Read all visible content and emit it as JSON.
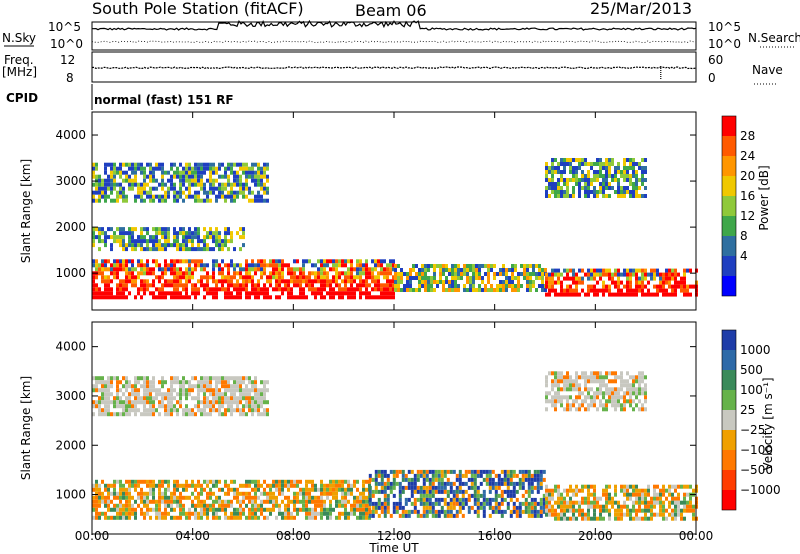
{
  "header": {
    "station": "South Pole Station (fitACF)",
    "beam": "Beam 06",
    "date": "25/Mar/2013"
  },
  "status_panels": {
    "nsky_label": "N.Sky",
    "nsearch_label": "N.Search",
    "freq_label_top": "Freq.",
    "freq_label_unit": "[MHz]",
    "cpid_label": "CPID",
    "nave_label": "Nave",
    "nsky_ticks": [
      "10^5",
      "10^0"
    ],
    "nsearch_ticks": [
      "10^5",
      "10^0"
    ],
    "freq_ticks": [
      "12",
      "8"
    ],
    "nave_ticks": [
      "60",
      "0"
    ],
    "cpid_text": "normal (fast) 151 RF"
  },
  "chart_data": [
    {
      "type": "heatmap",
      "name": "power",
      "ylabel": "Slant Range [km]",
      "xlabel": "",
      "ylim": [
        200,
        4500
      ],
      "y_ticks": [
        "1000",
        "2000",
        "3000",
        "4000"
      ],
      "colorbar": {
        "label": "Power [dB]",
        "ticks": [
          "28",
          "24",
          "20",
          "16",
          "12",
          "8",
          "4"
        ],
        "colors": [
          "#ff0000",
          "#ff5a00",
          "#ff9600",
          "#f0c800",
          "#8fc93a",
          "#3fa74a",
          "#2f6fa0",
          "#1f3fc0",
          "#0000ff"
        ]
      },
      "regions": [
        {
          "t": [
            0.0,
            12.0
          ],
          "range": [
            500,
            1300
          ],
          "level": "high"
        },
        {
          "t": [
            12.0,
            18.0
          ],
          "range": [
            600,
            1200
          ],
          "level": "mid"
        },
        {
          "t": [
            18.0,
            24.0
          ],
          "range": [
            500,
            1100
          ],
          "level": "high"
        },
        {
          "t": [
            0.0,
            7.0
          ],
          "range": [
            2600,
            3400
          ],
          "level": "low"
        },
        {
          "t": [
            18.0,
            22.0
          ],
          "range": [
            2700,
            3500
          ],
          "level": "low"
        },
        {
          "t": [
            0.0,
            6.0
          ],
          "range": [
            1500,
            2000
          ],
          "level": "low"
        }
      ]
    },
    {
      "type": "heatmap",
      "name": "velocity",
      "ylabel": "Slant Range [km]",
      "xlabel": "Time UT",
      "ylim": [
        200,
        4500
      ],
      "y_ticks": [
        "1000",
        "2000",
        "3000",
        "4000"
      ],
      "x_ticks": [
        "00:00",
        "04:00",
        "08:00",
        "12:00",
        "16:00",
        "20:00",
        "00:00"
      ],
      "colorbar": {
        "label": "Velocity [m s⁻¹]",
        "ticks": [
          "1000",
          "500",
          "100",
          "25",
          "−25",
          "−100",
          "−500",
          "−1000"
        ],
        "colors": [
          "#1e3ca8",
          "#2e6aa8",
          "#3a8a5a",
          "#66b24a",
          "#c8c8c0",
          "#f0a000",
          "#ff7800",
          "#ff3c00",
          "#ff0000"
        ]
      },
      "regions": [
        {
          "t": [
            0.0,
            11.0
          ],
          "range": [
            500,
            1300
          ],
          "level": "negative"
        },
        {
          "t": [
            11.0,
            18.0
          ],
          "range": [
            600,
            1500
          ],
          "level": "positive"
        },
        {
          "t": [
            18.0,
            24.0
          ],
          "range": [
            500,
            1200
          ],
          "level": "negative"
        },
        {
          "t": [
            0.0,
            7.0
          ],
          "range": [
            2600,
            3400
          ],
          "level": "near-zero"
        },
        {
          "t": [
            18.0,
            22.0
          ],
          "range": [
            2700,
            3500
          ],
          "level": "near-zero"
        }
      ]
    }
  ]
}
